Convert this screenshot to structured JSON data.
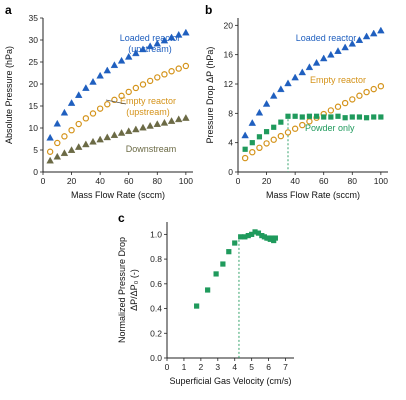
{
  "chart_data": [
    {
      "panel": "a",
      "type": "scatter",
      "xlabel": "Mass Flow Rate (sccm)",
      "ylabel": "Absolute Pressure (hPa)",
      "xlim": [
        0,
        105
      ],
      "ylim": [
        0,
        35
      ],
      "xticks": [
        0,
        20,
        40,
        60,
        80,
        100
      ],
      "yticks": [
        0,
        5,
        10,
        15,
        20,
        25,
        30,
        35
      ],
      "grid": false,
      "series": [
        {
          "name": "Loaded reactor (upstream)",
          "label_lines": [
            "Loaded reactor",
            "(upstream)"
          ],
          "marker": "triangle",
          "filled": true,
          "color": "#1f5fbf",
          "x": [
            5,
            10,
            15,
            20,
            25,
            30,
            35,
            40,
            45,
            50,
            55,
            60,
            65,
            70,
            75,
            80,
            85,
            90,
            95,
            100
          ],
          "y": [
            7.8,
            11.0,
            13.5,
            15.7,
            17.5,
            19.1,
            20.5,
            21.9,
            23.1,
            24.3,
            25.3,
            26.2,
            27.0,
            27.9,
            28.6,
            29.2,
            29.9,
            30.6,
            31.2,
            31.7
          ]
        },
        {
          "name": "Empty reactor (upstream)",
          "label_lines": [
            "Empty reactor",
            "(upstream)"
          ],
          "marker": "circle",
          "filled": false,
          "color": "#d4931a",
          "x": [
            5,
            10,
            15,
            20,
            25,
            30,
            35,
            40,
            45,
            50,
            55,
            60,
            65,
            70,
            75,
            80,
            85,
            90,
            95,
            100
          ],
          "y": [
            4.6,
            6.6,
            8.1,
            9.5,
            10.9,
            12.2,
            13.3,
            14.4,
            15.4,
            16.4,
            17.3,
            18.2,
            19.1,
            19.9,
            20.7,
            21.5,
            22.2,
            22.9,
            23.5,
            24.1
          ]
        },
        {
          "name": "Downstream",
          "label_lines": [
            "Downstream"
          ],
          "marker": "triangle",
          "filled": true,
          "color": "#6b6a45",
          "x": [
            5,
            10,
            15,
            20,
            25,
            30,
            35,
            40,
            45,
            50,
            55,
            60,
            65,
            70,
            75,
            80,
            85,
            90,
            95,
            100
          ],
          "y": [
            2.6,
            3.5,
            4.3,
            5.0,
            5.7,
            6.3,
            6.9,
            7.4,
            7.9,
            8.4,
            8.9,
            9.3,
            9.7,
            10.1,
            10.5,
            10.9,
            11.2,
            11.6,
            12.0,
            12.3
          ]
        }
      ]
    },
    {
      "panel": "b",
      "type": "scatter",
      "xlabel": "Mass Flow Rate (sccm)",
      "ylabel": "Pressure Drop ΔP (hPa)",
      "xlim": [
        0,
        105
      ],
      "ylim": [
        0,
        21
      ],
      "xticks": [
        0,
        20,
        40,
        60,
        80,
        100
      ],
      "yticks": [
        0,
        4,
        8,
        12,
        16,
        20
      ],
      "grid": false,
      "reference_line_x": 35,
      "series": [
        {
          "name": "Loaded reactor",
          "label_lines": [
            "Loaded reactor"
          ],
          "marker": "triangle",
          "filled": true,
          "color": "#1f5fbf",
          "x": [
            5,
            10,
            15,
            20,
            25,
            30,
            35,
            40,
            45,
            50,
            55,
            60,
            65,
            70,
            75,
            80,
            85,
            90,
            95,
            100
          ],
          "y": [
            5.0,
            6.7,
            8.1,
            9.3,
            10.4,
            11.3,
            12.1,
            12.9,
            13.6,
            14.3,
            14.9,
            15.5,
            16.0,
            16.5,
            17.0,
            17.5,
            18.0,
            18.5,
            18.9,
            19.3
          ]
        },
        {
          "name": "Empty reactor",
          "label_lines": [
            "Empty reactor"
          ],
          "marker": "circle",
          "filled": false,
          "color": "#d4931a",
          "x": [
            5,
            10,
            15,
            20,
            25,
            30,
            35,
            40,
            45,
            50,
            55,
            60,
            65,
            70,
            75,
            80,
            85,
            90,
            95,
            100
          ],
          "y": [
            1.9,
            2.7,
            3.3,
            3.9,
            4.4,
            4.9,
            5.4,
            5.9,
            6.4,
            6.9,
            7.4,
            7.9,
            8.4,
            8.9,
            9.4,
            9.9,
            10.4,
            10.9,
            11.3,
            11.7
          ]
        },
        {
          "name": "Powder only",
          "label_lines": [
            "Powder only"
          ],
          "marker": "square",
          "filled": true,
          "color": "#1f9a5c",
          "x": [
            5,
            10,
            15,
            20,
            25,
            30,
            35,
            40,
            45,
            50,
            55,
            60,
            65,
            70,
            75,
            80,
            85,
            90,
            95,
            100
          ],
          "y": [
            3.1,
            4.0,
            4.8,
            5.5,
            6.1,
            6.8,
            7.6,
            7.6,
            7.5,
            7.6,
            7.6,
            7.5,
            7.5,
            7.6,
            7.4,
            7.5,
            7.5,
            7.4,
            7.5,
            7.5
          ]
        }
      ]
    },
    {
      "panel": "c",
      "type": "scatter",
      "xlabel": "Superficial Gas Velocity (cm/s)",
      "ylabel_lines": [
        "Normalized Pressure Drop",
        "ΔP/ΔP₀ (-)"
      ],
      "xlim": [
        0,
        7.5
      ],
      "ylim": [
        0,
        1.1
      ],
      "xticks": [
        0,
        1,
        2,
        3,
        4,
        5,
        6,
        7
      ],
      "yticks": [
        0,
        0.2,
        0.4,
        0.6,
        0.8,
        1.0
      ],
      "ytick_labels": [
        "0.0",
        "0.2",
        "0.4",
        "0.6",
        "0.8",
        "1.0"
      ],
      "grid": false,
      "reference_line_x": 4.25,
      "series": [
        {
          "name": "Powder only",
          "marker": "square",
          "filled": true,
          "color": "#1f9a5c",
          "x": [
            1.75,
            2.4,
            2.9,
            3.3,
            3.65,
            4.0,
            4.35,
            4.6,
            4.8,
            5.0,
            5.2,
            5.4,
            5.6,
            5.75,
            5.9,
            6.0,
            6.1,
            6.2,
            6.3,
            6.4
          ],
          "y": [
            0.42,
            0.55,
            0.68,
            0.76,
            0.86,
            0.93,
            0.98,
            0.98,
            0.99,
            1.0,
            1.02,
            1.01,
            0.99,
            0.98,
            0.97,
            0.97,
            0.96,
            0.97,
            0.95,
            0.97
          ]
        }
      ]
    }
  ]
}
